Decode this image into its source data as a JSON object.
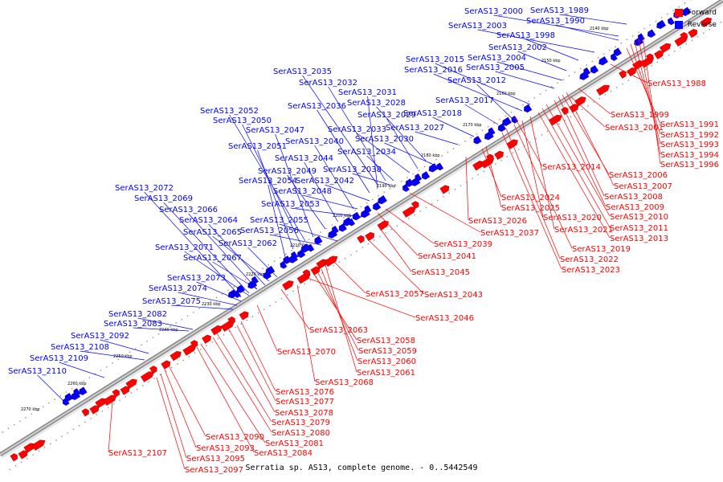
{
  "legend": {
    "forward": "Forward",
    "reverse": "Reverse"
  },
  "colors": {
    "forward": "#ff0000",
    "reverse": "#0000ff",
    "backbone": "#b0b0b0"
  },
  "caption": "Serratia sp. AS13, complete genome. - 0..5442549",
  "ticks": [
    "2140 kbp",
    "2150 kbp",
    "2160 kbp",
    "2170 kbp",
    "2180 kbp",
    "2190 kbp",
    "2200 kbp",
    "2210 kbp",
    "2220 kbp",
    "2230 kbp",
    "2240 kbp",
    "2250 kbp",
    "2260 kbp",
    "2270 kbp"
  ],
  "reverse_labels": [
    "SerAS13_2000",
    "SerAS13_1989",
    "SerAS13_1990",
    "SerAS13_2003",
    "SerAS13_1998",
    "SerAS13_2002",
    "SerAS13_2004",
    "SerAS13_2015",
    "SerAS13_2016",
    "SerAS13_2005",
    "SerAS13_2035",
    "SerAS13_2012",
    "SerAS13_2032",
    "SerAS13_2031",
    "SerAS13_2017",
    "SerAS13_2028",
    "SerAS13_2036",
    "SerAS13_2018",
    "SerAS13_2052",
    "SerAS13_2029",
    "SerAS13_2050",
    "SerAS13_2027",
    "SerAS13_2033",
    "SerAS13_2047",
    "SerAS13_2030",
    "SerAS13_2040",
    "SerAS13_2051",
    "SerAS13_2034",
    "SerAS13_2044",
    "SerAS13_2038",
    "SerAS13_2049",
    "SerAS13_2042",
    "SerAS13_2054",
    "SerAS13_2048",
    "SerAS13_2072",
    "SerAS13_2069",
    "SerAS13_2053",
    "SerAS13_2066",
    "SerAS13_2055",
    "SerAS13_2064",
    "SerAS13_2056",
    "SerAS13_2065",
    "SerAS13_2062",
    "SerAS13_2071",
    "SerAS13_2067",
    "SerAS13_2073",
    "SerAS13_2074",
    "SerAS13_2075",
    "SerAS13_2082",
    "SerAS13_2083",
    "SerAS13_2092",
    "SerAS13_2108",
    "SerAS13_2109",
    "SerAS13_2110"
  ],
  "forward_labels": [
    "SerAS13_1988",
    "SerAS13_1999",
    "SerAS13_2001",
    "SerAS13_1991",
    "SerAS13_1992",
    "SerAS13_1993",
    "SerAS13_1994",
    "SerAS13_1996",
    "SerAS13_2014",
    "SerAS13_2006",
    "SerAS13_2007",
    "SerAS13_2008",
    "SerAS13_2024",
    "SerAS13_2009",
    "SerAS13_2025",
    "SerAS13_2010",
    "SerAS13_2026",
    "SerAS13_2020",
    "SerAS13_2011",
    "SerAS13_2037",
    "SerAS13_2021",
    "SerAS13_2013",
    "SerAS13_2039",
    "SerAS13_2019",
    "SerAS13_2041",
    "SerAS13_2022",
    "SerAS13_2023",
    "SerAS13_2045",
    "SerAS13_2057",
    "SerAS13_2043",
    "SerAS13_2046",
    "SerAS13_2063",
    "SerAS13_2058",
    "SerAS13_2059",
    "SerAS13_2070",
    "SerAS13_2060",
    "SerAS13_2061",
    "SerAS13_2068",
    "SerAS13_2076",
    "SerAS13_2077",
    "SerAS13_2078",
    "SerAS13_2079",
    "SerAS13_2080",
    "SerAS13_2090",
    "SerAS13_2081",
    "SerAS13_2093",
    "SerAS13_2107",
    "SerAS13_2084",
    "SerAS13_2095",
    "SerAS13_2097"
  ]
}
